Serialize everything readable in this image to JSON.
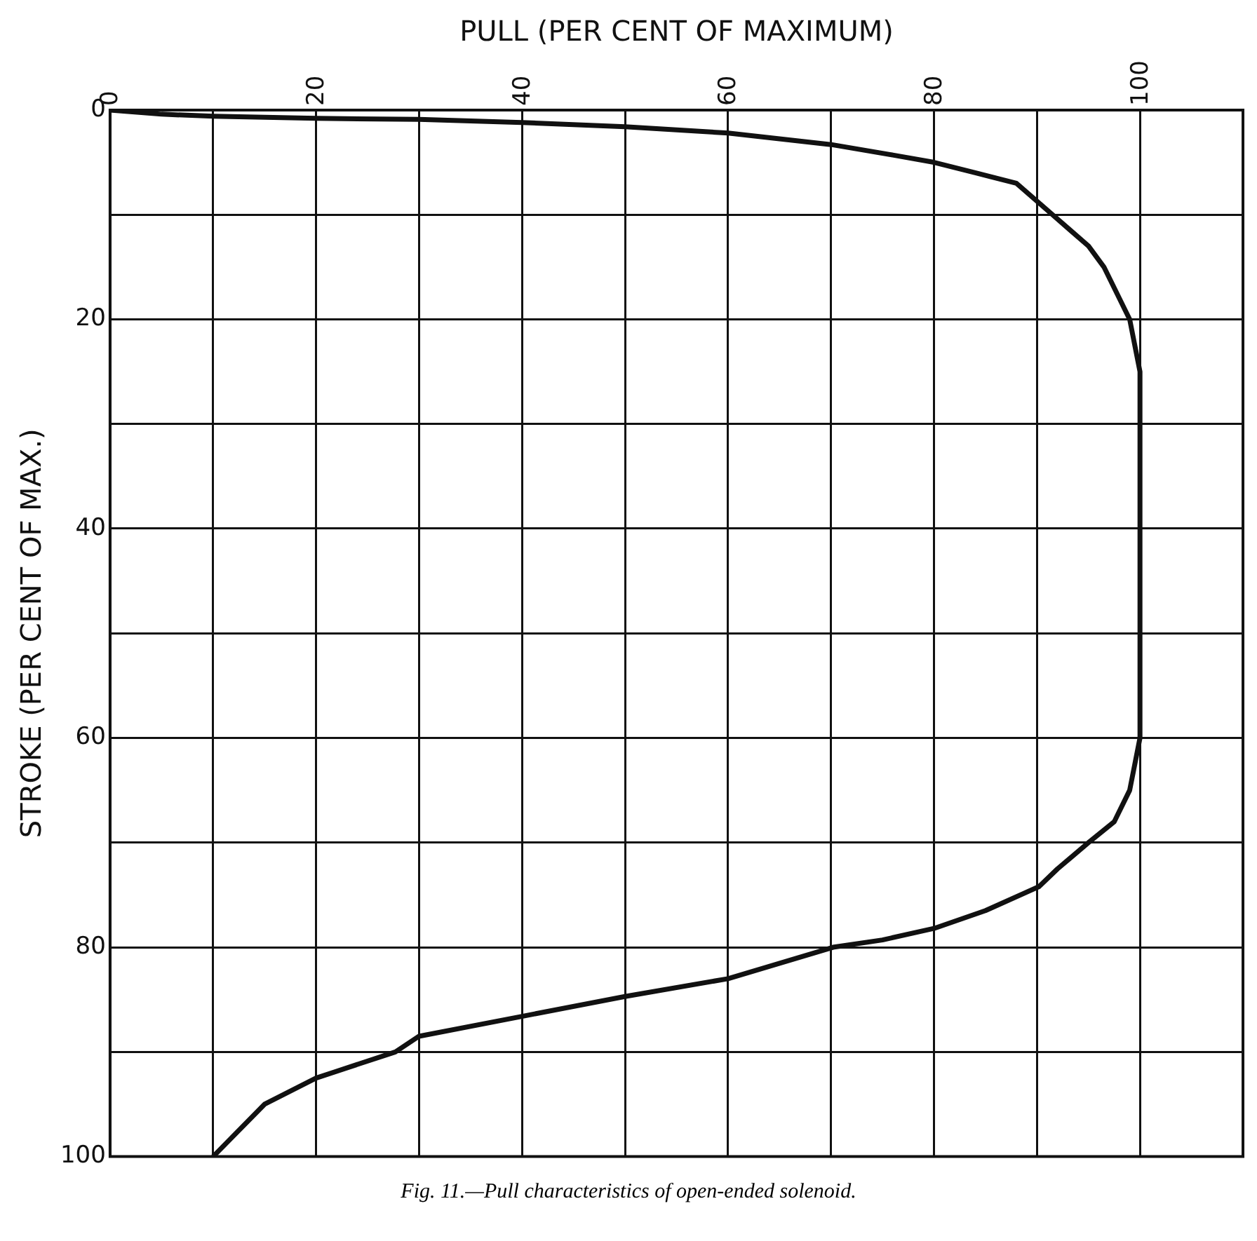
{
  "chart_data": {
    "type": "line",
    "xlabel": "PULL (PER CENT OF MAXIMUM)",
    "ylabel": "STROKE (PER CENT OF MAX.)",
    "annotations": [
      "Fig. 11.—Pull characteristics of open-ended solenoid."
    ],
    "series": [
      {
        "color": "#111111",
        "x": [
          0,
          5,
          10,
          20,
          30,
          40,
          50,
          60,
          70,
          76,
          80,
          84,
          88,
          91.5,
          95,
          96.5,
          99,
          100,
          100,
          99,
          97.5,
          95,
          92,
          90.2,
          85,
          80,
          75,
          70.2,
          60,
          50,
          40,
          30,
          27.7,
          20,
          15,
          10
        ],
        "values": [
          0,
          0.4,
          0.6,
          0.8,
          0.9,
          1.2,
          1.6,
          2.2,
          3.3,
          4.3,
          5,
          6,
          7,
          10,
          13,
          15,
          20,
          25,
          60,
          65,
          68,
          70,
          72.5,
          74.2,
          76.5,
          78.2,
          79.3,
          80,
          83,
          84.7,
          86.6,
          88.5,
          90,
          92.5,
          95,
          100
        ]
      }
    ],
    "xlim": [
      0,
      110
    ],
    "xticks": [
      0,
      {
        "value": 10,
        "label": null
      },
      20,
      {
        "value": 30,
        "label": null
      },
      40,
      {
        "value": 50,
        "label": null
      },
      60,
      {
        "value": 70,
        "label": null
      },
      80,
      {
        "value": 90,
        "label": null
      },
      100
    ],
    "ylim": [
      100,
      0
    ],
    "yticks": [
      0,
      {
        "value": 10,
        "label": null
      },
      20,
      {
        "value": 30,
        "label": null
      },
      40,
      {
        "value": 50,
        "label": null
      },
      60,
      {
        "value": 70,
        "label": null
      },
      80,
      {
        "value": 90,
        "label": null
      },
      100
    ],
    "grid": true,
    "marker": "none",
    "line_style": "solid"
  }
}
